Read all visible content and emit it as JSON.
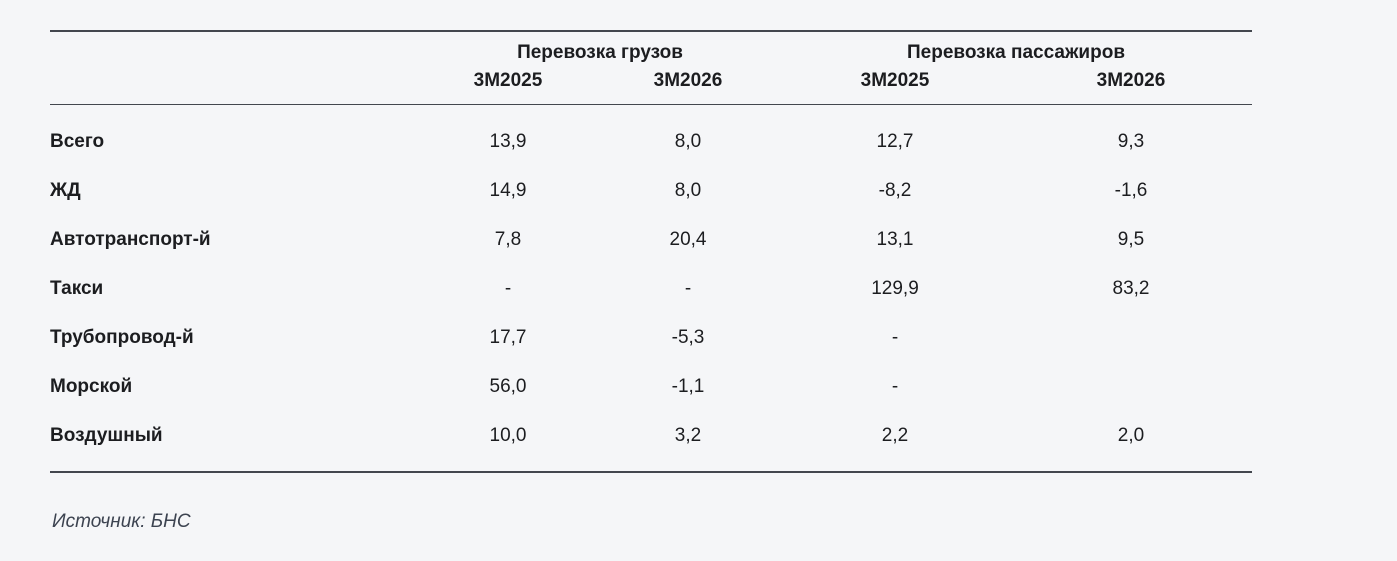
{
  "table": {
    "groups": [
      {
        "label": "Перевозка грузов",
        "columns": [
          "3М2025",
          "3М2026"
        ]
      },
      {
        "label": "Перевозка пассажиров",
        "columns": [
          "3М2025",
          "3М2026"
        ]
      }
    ],
    "rows": [
      {
        "label": "Всего",
        "values": [
          "13,9",
          "8,0",
          "12,7",
          "9,3"
        ]
      },
      {
        "label": "ЖД",
        "values": [
          "14,9",
          "8,0",
          "-8,2",
          "-1,6"
        ]
      },
      {
        "label": "Автотранспорт-й",
        "values": [
          "7,8",
          "20,4",
          "13,1",
          "9,5"
        ]
      },
      {
        "label": "Такси",
        "values": [
          "-",
          "-",
          "129,9",
          "83,2"
        ]
      },
      {
        "label": "Трубопровод-й",
        "values": [
          "17,7",
          "-5,3",
          "-",
          ""
        ]
      },
      {
        "label": "Морской",
        "values": [
          "56,0",
          "-1,1",
          "-",
          ""
        ]
      },
      {
        "label": "Воздушный",
        "values": [
          "10,0",
          "3,2",
          "2,2",
          "2,0"
        ]
      }
    ]
  },
  "footer": {
    "source": "Источник: БНС"
  },
  "colors": {
    "background": "#f5f6f8",
    "rule": "#43474e",
    "text": "#1c1d20",
    "source_text": "#3c4350"
  },
  "chart_data": {
    "type": "table",
    "title": "",
    "column_groups": [
      "Перевозка грузов",
      "Перевозка пассажиров"
    ],
    "columns": [
      "Перевозка грузов 3М2025",
      "Перевозка грузов 3М2026",
      "Перевозка пассажиров 3М2025",
      "Перевозка пассажиров 3М2026"
    ],
    "row_labels": [
      "Всего",
      "ЖД",
      "Автотранспорт-й",
      "Такси",
      "Трубопровод-й",
      "Морской",
      "Воздушный"
    ],
    "values": [
      [
        13.9,
        8.0,
        12.7,
        9.3
      ],
      [
        14.9,
        8.0,
        -8.2,
        -1.6
      ],
      [
        7.8,
        20.4,
        13.1,
        9.5
      ],
      [
        null,
        null,
        129.9,
        83.2
      ],
      [
        17.7,
        -5.3,
        null,
        null
      ],
      [
        56.0,
        -1.1,
        null,
        null
      ],
      [
        10.0,
        3.2,
        2.2,
        2.0
      ]
    ],
    "decimal_separator": ",",
    "missing_marker": "-",
    "source": "Источник: БНС"
  }
}
